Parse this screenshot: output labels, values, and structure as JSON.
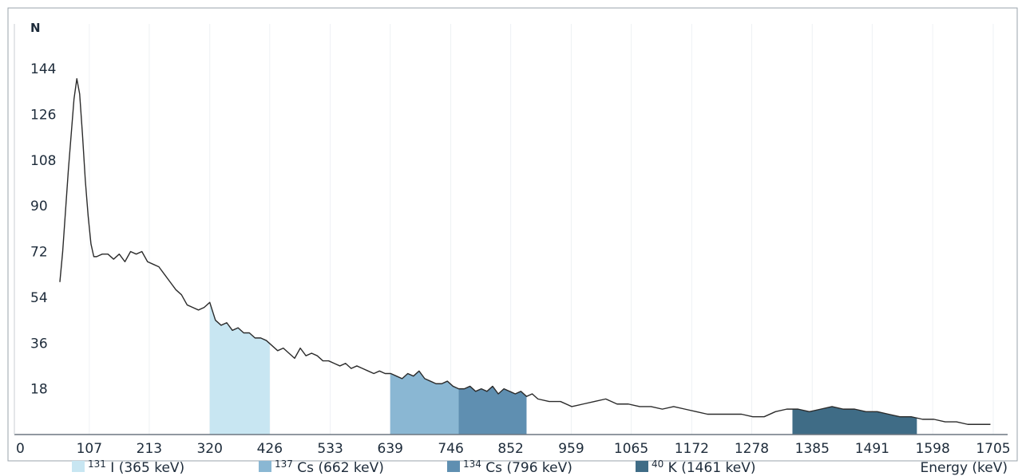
{
  "chart_data": {
    "type": "area",
    "title": "",
    "ylabel": "N",
    "xlabel": "Energy (keV)",
    "xlim": [
      0,
      1705
    ],
    "ylim": [
      0,
      144
    ],
    "yticks": [
      "18",
      "36",
      "54",
      "72",
      "90",
      "108",
      "126",
      "144"
    ],
    "xticks": [
      "0",
      "107",
      "213",
      "320",
      "426",
      "533",
      "639",
      "746",
      "852",
      "959",
      "1065",
      "1172",
      "1278",
      "1385",
      "1491",
      "1598",
      "1705"
    ],
    "grid": true,
    "legend_placement": "bottom",
    "spectrum": {
      "x": [
        55,
        60,
        65,
        70,
        75,
        80,
        85,
        90,
        95,
        100,
        105,
        110,
        115,
        120,
        130,
        140,
        150,
        160,
        170,
        180,
        190,
        200,
        210,
        220,
        230,
        240,
        250,
        260,
        270,
        280,
        290,
        300,
        310,
        320,
        330,
        340,
        350,
        360,
        370,
        380,
        390,
        400,
        410,
        420,
        430,
        440,
        450,
        460,
        470,
        480,
        490,
        500,
        510,
        520,
        530,
        540,
        550,
        560,
        570,
        580,
        590,
        600,
        610,
        620,
        630,
        640,
        650,
        660,
        670,
        680,
        690,
        700,
        710,
        720,
        730,
        740,
        750,
        760,
        770,
        780,
        790,
        800,
        810,
        820,
        830,
        840,
        850,
        860,
        870,
        880,
        890,
        900,
        920,
        940,
        960,
        980,
        1000,
        1020,
        1040,
        1060,
        1080,
        1100,
        1120,
        1140,
        1160,
        1180,
        1200,
        1220,
        1240,
        1260,
        1280,
        1300,
        1320,
        1340,
        1360,
        1380,
        1400,
        1420,
        1440,
        1460,
        1480,
        1500,
        1520,
        1540,
        1560,
        1580,
        1600,
        1620,
        1640,
        1660,
        1680,
        1700
      ],
      "y": [
        60,
        72,
        88,
        104,
        118,
        132,
        140,
        134,
        118,
        100,
        86,
        75,
        70,
        70,
        71,
        71,
        69,
        71,
        68,
        72,
        71,
        72,
        68,
        67,
        66,
        63,
        60,
        57,
        55,
        51,
        50,
        49,
        50,
        52,
        45,
        43,
        44,
        41,
        42,
        40,
        40,
        38,
        38,
        37,
        35,
        33,
        34,
        32,
        30,
        34,
        31,
        32,
        31,
        29,
        29,
        28,
        27,
        28,
        26,
        27,
        26,
        25,
        24,
        25,
        24,
        24,
        23,
        22,
        24,
        23,
        25,
        22,
        21,
        20,
        20,
        21,
        19,
        18,
        18,
        19,
        17,
        18,
        17,
        19,
        16,
        18,
        17,
        16,
        17,
        15,
        16,
        14,
        13,
        13,
        11,
        12,
        13,
        14,
        12,
        12,
        11,
        11,
        10,
        11,
        10,
        9,
        8,
        8,
        8,
        8,
        7,
        7,
        9,
        10,
        10,
        9,
        10,
        11,
        10,
        10,
        9,
        9,
        8,
        7,
        7,
        6,
        6,
        5,
        5,
        4,
        4,
        4
      ]
    },
    "regions": [
      {
        "label": "131 I (365 keV)",
        "iso_mass": "131",
        "iso_rest": "I (365 keV)",
        "range": [
          320,
          426
        ],
        "color": "#c8e6f2"
      },
      {
        "label": "137 Cs (662 keV)",
        "iso_mass": "137",
        "iso_rest": "Cs (662 keV)",
        "range": [
          639,
          760
        ],
        "color": "#8ab7d3"
      },
      {
        "label": "134 Cs (796 keV)",
        "iso_mass": "134",
        "iso_rest": "Cs (796 keV)",
        "range": [
          760,
          880
        ],
        "color": "#5f8fb1"
      },
      {
        "label": "40 K (1461 keV)",
        "iso_mass": "40",
        "iso_rest": "K (1461 keV)",
        "range": [
          1350,
          1570
        ],
        "color": "#3f6c86"
      }
    ]
  }
}
